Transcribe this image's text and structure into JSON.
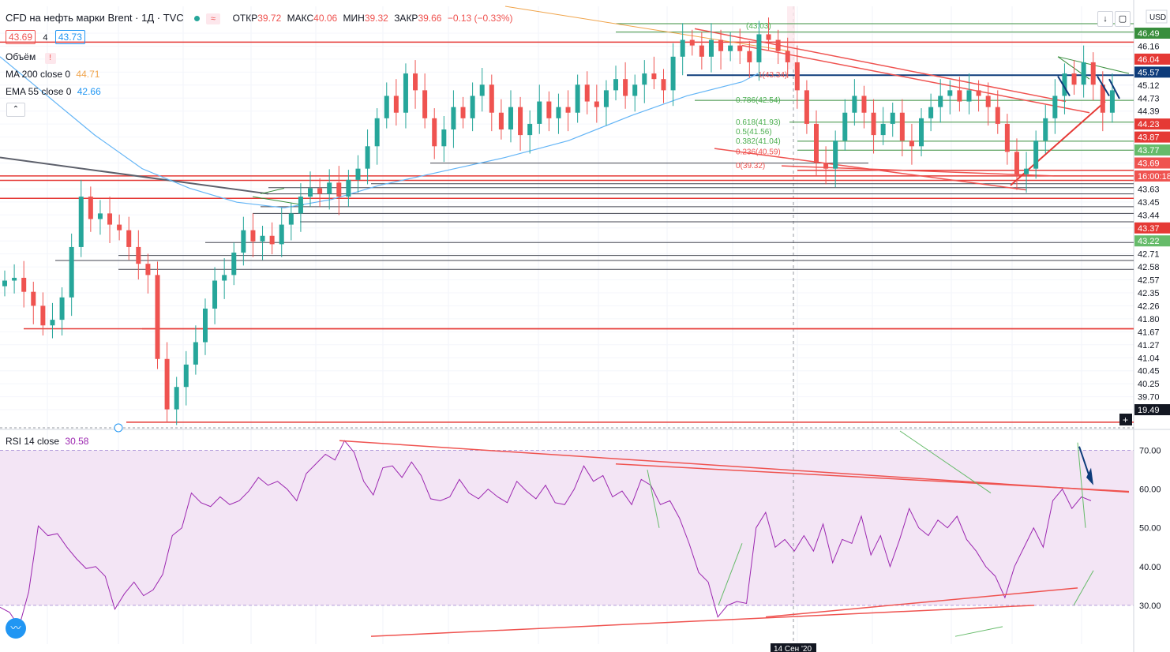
{
  "header": {
    "title": "CFD на нефть марки Brent · 1Д · TVC",
    "ohlc": [
      {
        "label": "ОТКР",
        "value": "39.72"
      },
      {
        "label": "МАКС",
        "value": "40.06"
      },
      {
        "label": "МИН",
        "value": "39.32"
      },
      {
        "label": "ЗАКР",
        "value": "39.66"
      }
    ],
    "change": "−0.13 (−0.33%)",
    "bid": "43.69",
    "spread": "4",
    "ask": "43.73",
    "wave_symbol": "≈"
  },
  "legend": {
    "volume_label": "Объём",
    "volume_warning": "!",
    "ma_label": "MA 200 close 0",
    "ma_value": "44.71",
    "ema_label": "EMA 55 close 0",
    "ema_value": "42.66",
    "rsi_label": "RSI 14 close",
    "rsi_value": "30.58",
    "collapse_symbol": "⌃"
  },
  "toolbar": {
    "currency": "USD",
    "down_symbol": "↓",
    "window_symbol": "▢",
    "plus_symbol": "+",
    "logo_symbol": "〰"
  },
  "colors": {
    "up": "#26a69a",
    "down": "#ef5350",
    "level_red": "#e53935",
    "level_dark": "#434651",
    "level_green": "#388e3c",
    "ma": "#f0a44b",
    "ema": "#64b5f6",
    "rsi": "#9c27b0",
    "rsi_band": "#f3e5f5",
    "navy": "#0d3b7a"
  },
  "chart_data": {
    "type": "candlestick",
    "price_range": [
      39.27,
      46.8
    ],
    "rsi_range": [
      20,
      75
    ],
    "price_axis_labels": [
      "46.49",
      "46.16",
      "46.04",
      "45.57",
      "45.12",
      "44.73",
      "44.39",
      "44.23",
      "43.87",
      "43.77",
      "43.69",
      "16:00:18",
      "43.63",
      "43.45",
      "43.44",
      "43.37",
      "43.22",
      "42.71",
      "42.58",
      "42.57",
      "42.35",
      "42.26",
      "41.80",
      "41.67",
      "41.27",
      "41.04",
      "40.45",
      "40.25",
      "39.70",
      "19.49"
    ],
    "price_axis_badges": [
      {
        "label": "46.49",
        "value": 46.49,
        "bg": "#388e3c"
      },
      {
        "label": "46.04",
        "value": 46.04,
        "bg": "#e53935"
      },
      {
        "label": "45.57",
        "value": 45.57,
        "bg": "#0d3b7a"
      },
      {
        "label": "44.23",
        "value": 44.23,
        "bg": "#e53935"
      },
      {
        "label": "43.87",
        "value": 43.87,
        "bg": "#e53935"
      },
      {
        "label": "43.77",
        "value": 43.77,
        "bg": "#66bb6a"
      },
      {
        "label": "43.69",
        "value": 43.69,
        "bg": "#ef5350"
      },
      {
        "label": "16:00:18",
        "value": 43.56,
        "bg": "#ef5350"
      },
      {
        "label": "43.37",
        "value": 43.37,
        "bg": "#e53935"
      },
      {
        "label": "43.22",
        "value": 43.22,
        "bg": "#66bb6a"
      },
      {
        "label": "19.49",
        "value": 39.27,
        "bg": "#131722"
      }
    ],
    "rsi_axis_labels": [
      "70.00",
      "60.00",
      "50.00",
      "40.00",
      "30.00"
    ],
    "rsi_band": [
      30,
      70
    ],
    "x_axis_labels": [
      "14 Сен '20"
    ],
    "candle_closes": [
      41.9,
      41.95,
      41.7,
      41.45,
      41.1,
      41.2,
      41.6,
      42.5,
      43.4,
      43.0,
      43.1,
      42.9,
      42.8,
      42.5,
      42.2,
      42.0,
      40.5,
      39.6,
      40.0,
      40.4,
      40.8,
      41.4,
      41.9,
      42.0,
      42.4,
      42.8,
      42.6,
      42.7,
      42.55,
      42.9,
      43.1,
      43.4,
      43.55,
      43.45,
      43.65,
      43.4,
      43.7,
      43.9,
      44.3,
      44.8,
      45.2,
      44.9,
      45.6,
      45.3,
      44.8,
      44.3,
      44.6,
      45.0,
      44.8,
      45.2,
      45.4,
      44.9,
      44.6,
      45.0,
      44.5,
      44.7,
      45.1,
      44.8,
      45.0,
      44.9,
      45.4,
      45.1,
      45.0,
      45.3,
      45.5,
      45.2,
      45.4,
      45.6,
      45.5,
      45.3,
      45.9,
      46.2,
      46.1,
      45.9,
      46.2,
      46.0,
      46.1,
      46.0,
      45.8,
      46.3,
      46.2,
      46.0,
      45.8,
      45.3,
      44.7,
      44.0,
      43.9,
      44.4,
      44.9,
      45.2,
      44.9,
      44.5,
      44.7,
      44.9,
      44.4,
      44.3,
      44.8,
      45.0,
      45.2,
      45.3,
      45.1,
      45.3,
      45.2,
      45.0,
      44.7,
      44.2,
      43.8,
      43.9,
      44.4,
      44.8,
      45.2,
      45.6,
      45.4,
      45.8,
      45.4,
      44.9,
      45.3
    ],
    "rsi_values": [
      29.5,
      28.2,
      24.5,
      33.5,
      50.5,
      48.0,
      48.5,
      45.0,
      42.0,
      39.5,
      40.0,
      37.5,
      29.0,
      33.0,
      36.0,
      32.5,
      34.0,
      38.0,
      48.0,
      50.0,
      59.0,
      56.5,
      55.5,
      58.0,
      56.0,
      57.0,
      59.5,
      63.0,
      61.0,
      62.0,
      60.0,
      57.0,
      64.0,
      66.5,
      69.0,
      67.5,
      72.5,
      69.5,
      62.0,
      58.5,
      65.5,
      66.0,
      63.0,
      67.0,
      63.5,
      57.5,
      57.0,
      58.0,
      62.5,
      59.0,
      57.5,
      60.0,
      58.0,
      56.5,
      62.0,
      59.5,
      57.5,
      61.0,
      56.5,
      56.0,
      60.0,
      66.0,
      62.0,
      63.5,
      58.0,
      59.5,
      56.0,
      62.5,
      61.0,
      56.0,
      57.0,
      52.5,
      46.0,
      38.5,
      36.0,
      27.0,
      30.0,
      31.0,
      30.5,
      50.0,
      54.0,
      45.0,
      47.0,
      44.0,
      48.0,
      44.0,
      51.0,
      41.0,
      47.0,
      46.0,
      53.0,
      43.0,
      48.0,
      40.0,
      47.0,
      55.0,
      50.0,
      48.0,
      52.0,
      50.0,
      53.0,
      47.0,
      44.0,
      40.0,
      37.5,
      32.0,
      40.0,
      45.0,
      50.0,
      45.0,
      57.0,
      60.0,
      55.0,
      58.0,
      57.0
    ],
    "ma200": [
      [
        0,
        45.9
      ],
      [
        60,
        45.2
      ],
      [
        120,
        44.5
      ],
      [
        180,
        43.9
      ],
      [
        240,
        43.55
      ],
      [
        300,
        43.3
      ],
      [
        360,
        43.2
      ],
      [
        420,
        43.35
      ],
      [
        480,
        43.6
      ],
      [
        560,
        43.85
      ],
      [
        640,
        44.1
      ],
      [
        720,
        44.4
      ],
      [
        800,
        44.85
      ],
      [
        870,
        45.2
      ],
      [
        940,
        45.45
      ],
      [
        960,
        45.6
      ]
    ],
    "ema55_rsi_band_top": [],
    "ma_ema_note": ""
  }
}
